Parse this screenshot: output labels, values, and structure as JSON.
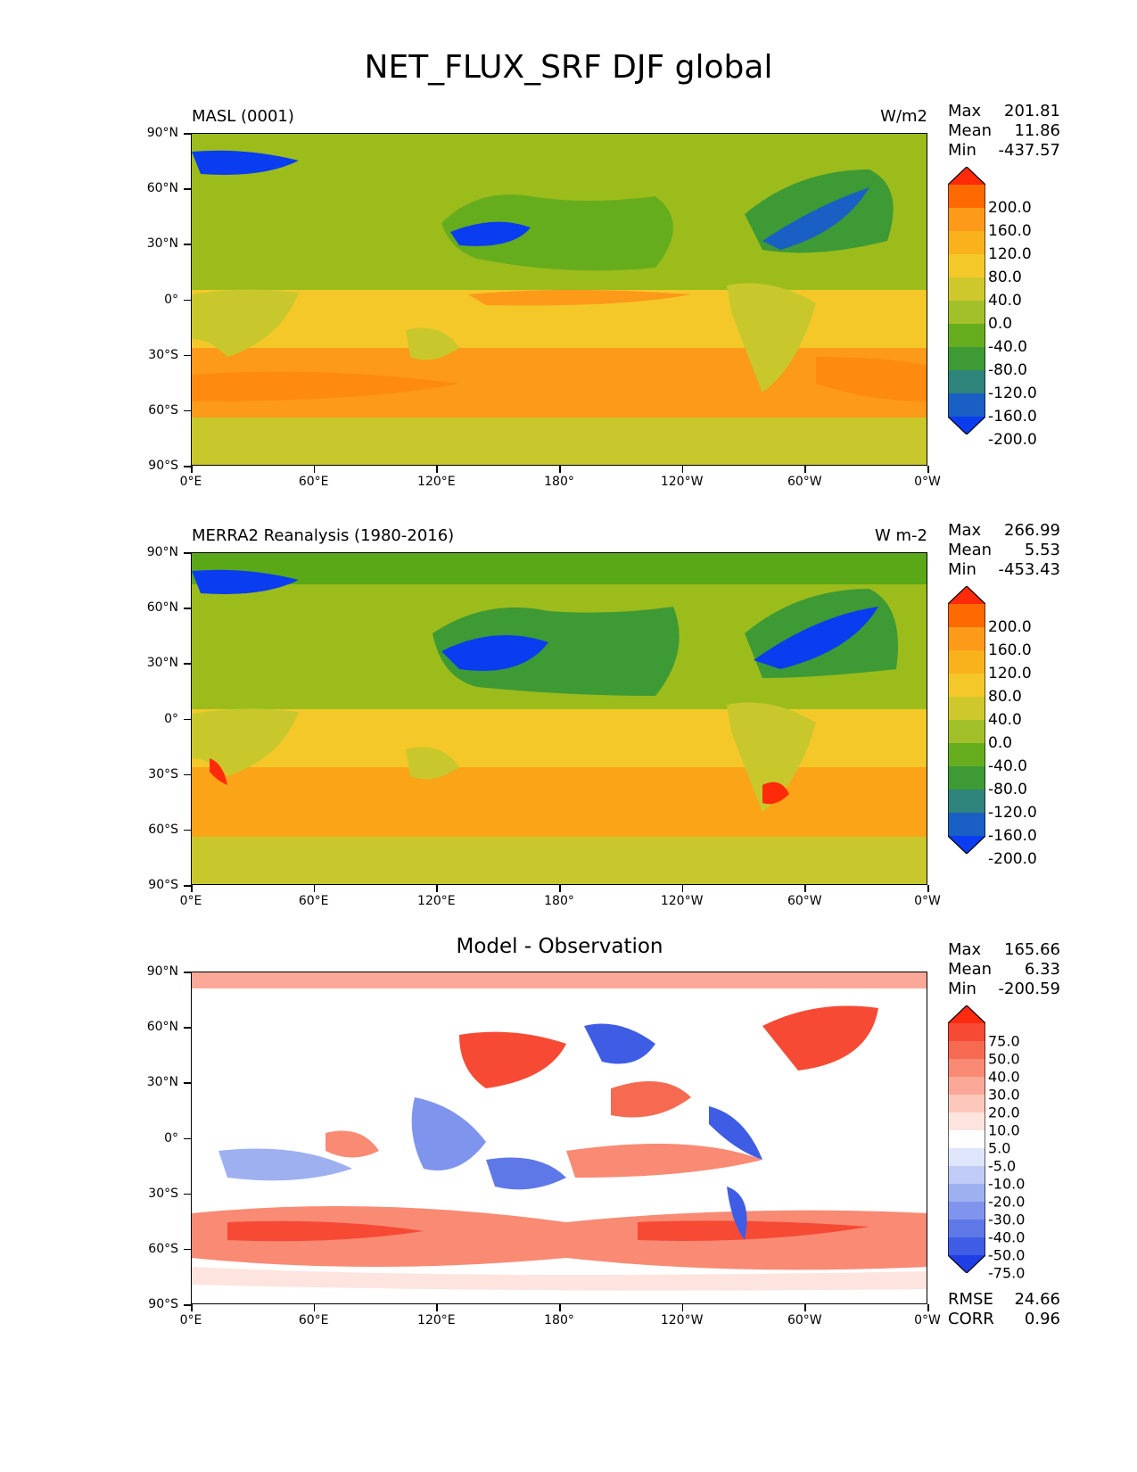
{
  "figure": {
    "title": "NET_FLUX_SRF DJF global",
    "lat_labels": [
      "90°N",
      "60°N",
      "30°N",
      "0°",
      "30°S",
      "60°S",
      "90°S"
    ],
    "lon_labels": [
      "0°E",
      "60°E",
      "120°E",
      "180°",
      "120°W",
      "60°W",
      "0°W"
    ]
  },
  "panels": [
    {
      "left_title": "MASL (0001)",
      "center_title": "",
      "right_title": "W/m2",
      "stats": {
        "max_label": "Max",
        "max": "201.81",
        "mean_label": "Mean",
        "mean": "11.86",
        "min_label": "Min",
        "min": "-437.57"
      },
      "colorbar": {
        "labels": [
          "200.0",
          "160.0",
          "120.0",
          "80.0",
          "40.0",
          "0.0",
          "-40.0",
          "-80.0",
          "-120.0",
          "-160.0",
          "-200.0"
        ],
        "colors": [
          "#ff2a0a",
          "#ff6a00",
          "#fd9a1a",
          "#f9b21c",
          "#f5c82a",
          "#cfc82c",
          "#a2c02a",
          "#66ad1e",
          "#3e9a34",
          "#2e847a",
          "#1a5fc4",
          "#0a3df0"
        ]
      }
    },
    {
      "left_title": "MERRA2 Reanalysis (1980-2016)",
      "center_title": "",
      "right_title": "W m-2",
      "stats": {
        "max_label": "Max",
        "max": "266.99",
        "mean_label": "Mean",
        "mean": "5.53",
        "min_label": "Min",
        "min": "-453.43"
      },
      "colorbar": {
        "labels": [
          "200.0",
          "160.0",
          "120.0",
          "80.0",
          "40.0",
          "0.0",
          "-40.0",
          "-80.0",
          "-120.0",
          "-160.0",
          "-200.0"
        ],
        "colors": [
          "#ff2a0a",
          "#ff6a00",
          "#fd9a1a",
          "#f9b21c",
          "#f5c82a",
          "#cfc82c",
          "#a2c02a",
          "#66ad1e",
          "#3e9a34",
          "#2e847a",
          "#1a5fc4",
          "#0a3df0"
        ]
      }
    },
    {
      "left_title": "",
      "center_title": "Model - Observation",
      "right_title": "",
      "stats": {
        "max_label": "Max",
        "max": "165.66",
        "mean_label": "Mean",
        "mean": "6.33",
        "min_label": "Min",
        "min": "-200.59"
      },
      "colorbar": {
        "labels": [
          "75.0",
          "50.0",
          "40.0",
          "30.0",
          "20.0",
          "10.0",
          "5.0",
          "-5.0",
          "-10.0",
          "-20.0",
          "-30.0",
          "-40.0",
          "-50.0",
          "-75.0"
        ],
        "colors": [
          "#ff2a10",
          "#f64a35",
          "#f76a52",
          "#f98a74",
          "#fba898",
          "#fdc8bc",
          "#fee4de",
          "#ffffff",
          "#dfe6fb",
          "#c0ccf6",
          "#9fb0f1",
          "#7f94ec",
          "#5f78e8",
          "#3f5ce5",
          "#1f3ee6"
        ]
      },
      "metrics": {
        "rmse_label": "RMSE",
        "rmse": "24.66",
        "corr_label": "CORR",
        "corr": "0.96"
      }
    }
  ]
}
